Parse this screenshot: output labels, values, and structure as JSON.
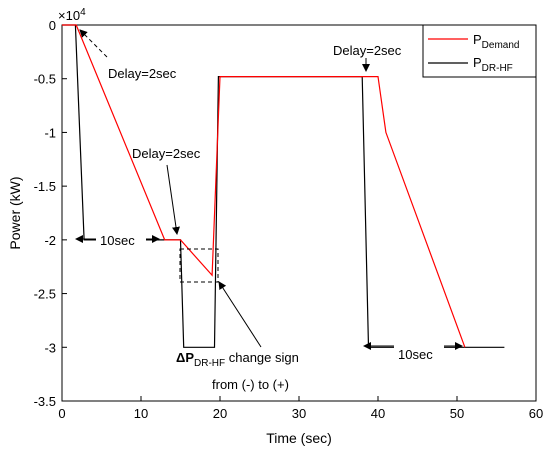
{
  "chart_data": {
    "type": "line",
    "xlabel": "Time (sec)",
    "ylabel": "Power (kW)",
    "y_multiplier": "×10",
    "y_multiplier_exp": "4",
    "xlim": [
      0,
      60
    ],
    "ylim": [
      -3.5,
      0
    ],
    "x_ticks": [
      "0",
      "10",
      "20",
      "30",
      "40",
      "50",
      "60"
    ],
    "y_ticks": [
      "0",
      "-0.5",
      "-1",
      "-1.5",
      "-2",
      "-2.5",
      "-3",
      "-3.5"
    ],
    "grid": false,
    "legend_position": "top-right",
    "series": [
      {
        "name": "P",
        "name_sub": "Demand",
        "color": "#ff0000",
        "x": [
          0,
          1.8,
          13,
          15,
          19,
          20,
          39,
          40,
          41,
          51
        ],
        "y": [
          0,
          0,
          -2.0,
          -2.0,
          -2.33,
          -0.48,
          -0.48,
          -0.48,
          -1.0,
          -3.0
        ]
      },
      {
        "name": "P",
        "name_sub": "DR-HF",
        "color": "#000000",
        "x": [
          0,
          1.7,
          2.8,
          13,
          13.2,
          15,
          15.4,
          19.3,
          19.8,
          38,
          38.8,
          51,
          56
        ],
        "y": [
          0,
          0,
          -2.0,
          -2.0,
          -2.0,
          -2.0,
          -3.0,
          -3.0,
          -0.48,
          -0.48,
          -3.0,
          -3.0,
          -3.0
        ]
      }
    ],
    "annotations": [
      {
        "text": "Delay=2sec",
        "x": 8.5,
        "y": -0.17
      },
      {
        "text": "Delay=2sec",
        "x": 7.0,
        "y": -1.4
      },
      {
        "text": "Delay=2sec",
        "x": 38.0,
        "y": 0.07
      },
      {
        "text": "10sec",
        "x": 8.5,
        "y": -2.0
      },
      {
        "text": "10sec",
        "x": 45.5,
        "y": -3.03
      },
      {
        "text": "ΔP",
        "sub": "DR-HF",
        "rest": " change sign",
        "x": 17.3,
        "y": -3.2
      },
      {
        "text": "from (-) to (+)",
        "x": 21.0,
        "y": -3.57
      }
    ]
  }
}
